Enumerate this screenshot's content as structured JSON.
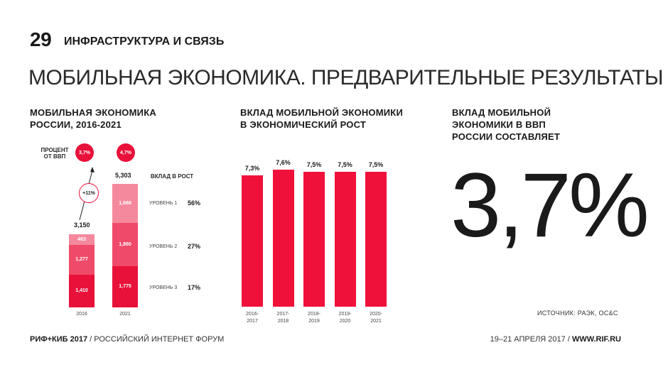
{
  "header": {
    "number": "29",
    "section": "ИНФРАСТРУКТУРА И СВЯЗЬ",
    "title": "МОБИЛЬНАЯ ЭКОНОМИКА. ПРЕДВАРИТЕЛЬНЫЕ РЕЗУЛЬТАТЫ"
  },
  "left_panel": {
    "title_line1": "МОБИЛЬНАЯ ЭКОНОМИКА",
    "title_line2": "РОССИИ, 2016-2021",
    "gdp_label_line1": "ПРОЦЕНТ",
    "gdp_label_line2": "ОТ ВВП",
    "gdp_2016": "3,7%",
    "gdp_2021": "4,7%",
    "growth": "+11%",
    "total_2016": "3,150",
    "total_2021": "5,303",
    "contribution_header": "ВКЛАД В РОСТ",
    "levels": [
      {
        "label": "УРОВЕНЬ 1",
        "pct": "56%"
      },
      {
        "label": "УРОВЕНЬ 2",
        "pct": "27%"
      },
      {
        "label": "УРОВЕНЬ 3",
        "pct": "17%"
      }
    ],
    "colors": {
      "level1": "#f4899d",
      "level2": "#f04a6a",
      "level3": "#e8113a"
    }
  },
  "middle_panel": {
    "title_line1": "ВКЛАД МОБИЛЬНОЙ ЭКОНОМИКИ",
    "title_line2": "В ЭКОНОМИЧЕСКИЙ РОСТ",
    "bar_color": "#f0113a"
  },
  "right_panel": {
    "title_line1": "ВКЛАД МОБИЛЬНОЙ",
    "title_line2": "ЭКОНОМИКИ В ВВП",
    "title_line3": "РОССИИ СОСТАВЛЯЕТ",
    "big_value": "3,7%",
    "source": "ИСТОЧНИК: РАЭК, ОС&С"
  },
  "footer": {
    "brand": "РИФ+КИБ 2017",
    "sep": " / ",
    "forum": "РОССИЙСКИЙ ИНТЕРНЕТ ФОРУМ",
    "dates": "19–21 АПРЕЛЯ 2017",
    "sep2": " / ",
    "site": "WWW.RIF.RU"
  },
  "chart_data": [
    {
      "type": "bar",
      "stacked": true,
      "title": "МОБИЛЬНАЯ ЭКОНОМИКА РОССИИ, 2016-2021",
      "categories": [
        "2016",
        "2021"
      ],
      "series": [
        {
          "name": "УРОВЕНЬ 1",
          "values": [
            463,
            1668
          ],
          "labels": [
            "463",
            "1,668"
          ]
        },
        {
          "name": "УРОВЕНЬ 2",
          "values": [
            1277,
            1860
          ],
          "labels": [
            "1,277",
            "1,860"
          ]
        },
        {
          "name": "УРОВЕНЬ 3",
          "values": [
            1410,
            1775
          ],
          "labels": [
            "1,410",
            "1,775"
          ]
        }
      ],
      "totals": [
        3150,
        5303
      ]
    },
    {
      "type": "bar",
      "title": "ВКЛАД МОБИЛЬНОЙ ЭКОНОМИКИ В ЭКОНОМИЧЕСКИЙ РОСТ",
      "categories": [
        [
          "2016-",
          "2017"
        ],
        [
          "2017-",
          "2018"
        ],
        [
          "2018-",
          "2019"
        ],
        [
          "2019-",
          "2020"
        ],
        [
          "2020-",
          "2021"
        ]
      ],
      "values": [
        7.3,
        7.6,
        7.5,
        7.5,
        7.5
      ],
      "labels": [
        "7,3%",
        "7,6%",
        "7,5%",
        "7,5%",
        "7,5%"
      ],
      "ylim": [
        0,
        7.6
      ]
    }
  ]
}
